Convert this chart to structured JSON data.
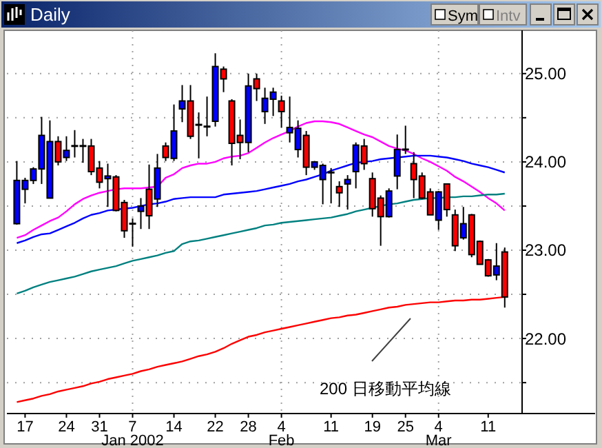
{
  "chart_data": {
    "type": "candlestick",
    "title": "Daily",
    "annotations": [
      "200 日移動平均線",
      "Sym",
      "Intv"
    ],
    "categories": [
      null,
      "17",
      null,
      null,
      null,
      null,
      "24",
      null,
      null,
      null,
      "31",
      null,
      null,
      null,
      "7\nJan 2002",
      null,
      null,
      null,
      null,
      "14",
      null,
      null,
      null,
      null,
      "22",
      null,
      null,
      null,
      "28",
      null,
      null,
      null,
      "4\nFeb",
      null,
      null,
      null,
      null,
      null,
      "11",
      null,
      null,
      null,
      null,
      "19",
      null,
      null,
      null,
      "25",
      null,
      null,
      null,
      "4\nMar",
      null,
      null,
      null,
      null,
      null,
      "11",
      null,
      null
    ],
    "ohlc": [
      [
        23.3,
        24.01,
        23.29,
        23.79
      ],
      [
        23.69,
        23.82,
        23.53,
        23.79
      ],
      [
        23.79,
        23.94,
        23.75,
        23.92
      ],
      [
        23.92,
        24.51,
        23.75,
        24.3
      ],
      [
        23.59,
        24.47,
        23.59,
        24.23
      ],
      [
        24.23,
        24.29,
        23.96,
        24.0
      ],
      [
        24.05,
        24.29,
        24.01,
        24.13
      ],
      [
        24.18,
        24.36,
        24.05,
        24.18
      ],
      [
        24.18,
        24.26,
        23.99,
        24.18
      ],
      [
        24.18,
        24.26,
        23.85,
        23.89
      ],
      [
        23.93,
        24.01,
        23.7,
        23.77
      ],
      [
        23.81,
        23.98,
        23.49,
        23.84
      ],
      [
        23.83,
        23.85,
        23.44,
        23.45
      ],
      [
        23.54,
        23.57,
        23.14,
        23.22
      ],
      [
        23.3,
        23.36,
        23.04,
        23.3
      ],
      [
        23.44,
        23.59,
        23.24,
        23.5
      ],
      [
        23.69,
        23.97,
        23.24,
        23.39
      ],
      [
        23.58,
        24.09,
        23.49,
        23.93
      ],
      [
        24.18,
        24.22,
        24.01,
        24.05
      ],
      [
        24.04,
        24.65,
        24.01,
        24.35
      ],
      [
        24.6,
        24.87,
        24.45,
        24.69
      ],
      [
        24.69,
        24.87,
        24.26,
        24.29
      ],
      [
        24.42,
        24.56,
        24.04,
        24.42
      ],
      [
        24.4,
        24.74,
        24.29,
        24.4
      ],
      [
        24.46,
        25.23,
        24.4,
        25.08
      ],
      [
        25.05,
        25.08,
        24.79,
        24.94
      ],
      [
        24.69,
        24.71,
        23.96,
        24.21
      ],
      [
        24.3,
        24.48,
        24.03,
        24.22
      ],
      [
        24.22,
        25.0,
        24.11,
        24.86
      ],
      [
        24.94,
        25.0,
        24.69,
        24.83
      ],
      [
        24.57,
        24.84,
        24.43,
        24.72
      ],
      [
        24.71,
        24.84,
        24.52,
        24.79
      ],
      [
        24.69,
        24.75,
        24.39,
        24.57
      ],
      [
        24.33,
        24.74,
        24.22,
        24.39
      ],
      [
        24.14,
        24.47,
        24.05,
        24.38
      ],
      [
        24.3,
        24.35,
        23.85,
        23.94
      ],
      [
        23.94,
        24.01,
        23.91,
        24.0
      ],
      [
        23.8,
        23.98,
        23.52,
        23.96
      ],
      [
        23.88,
        23.93,
        23.53,
        23.88
      ],
      [
        23.72,
        23.78,
        23.49,
        23.65
      ],
      [
        23.75,
        23.85,
        23.46,
        23.8
      ],
      [
        23.89,
        24.22,
        23.7,
        24.19
      ],
      [
        24.18,
        24.26,
        23.91,
        23.98
      ],
      [
        23.81,
        23.88,
        23.38,
        23.47
      ],
      [
        23.59,
        23.62,
        23.05,
        23.38
      ],
      [
        23.38,
        23.7,
        23.37,
        23.67
      ],
      [
        23.84,
        24.31,
        23.69,
        24.14
      ],
      [
        24.14,
        24.41,
        24.09,
        24.14
      ],
      [
        23.98,
        24.11,
        23.59,
        23.8
      ],
      [
        23.84,
        23.88,
        23.58,
        23.59
      ],
      [
        23.66,
        23.7,
        23.4,
        23.4
      ],
      [
        23.34,
        23.67,
        23.23,
        23.66
      ],
      [
        23.75,
        23.75,
        23.38,
        23.46
      ],
      [
        23.4,
        23.46,
        22.99,
        23.05
      ],
      [
        23.14,
        23.49,
        23.12,
        23.3
      ],
      [
        23.4,
        23.41,
        22.92,
        22.95
      ],
      [
        23.1,
        23.11,
        22.84,
        22.84
      ],
      [
        22.89,
        22.9,
        22.7,
        22.71
      ],
      [
        22.72,
        23.08,
        22.66,
        22.82
      ],
      [
        22.98,
        23.03,
        22.35,
        22.47
      ]
    ],
    "colors": [
      "#0000ff",
      "#0000ff",
      "#0000ff",
      "#0000ff",
      "#0000ff",
      "#ff0000",
      "#0000ff",
      "#000000",
      "#000000",
      "#ff0000",
      "#ff0000",
      "#0000ff",
      "#ff0000",
      "#ff0000",
      "#000000",
      "#0000ff",
      "#ff0000",
      "#0000ff",
      "#ff0000",
      "#0000ff",
      "#0000ff",
      "#ff0000",
      "#000000",
      "#000000",
      "#0000ff",
      "#ff0000",
      "#ff0000",
      "#ff0000",
      "#0000ff",
      "#ff0000",
      "#0000ff",
      "#0000ff",
      "#ff0000",
      "#0000ff",
      "#0000ff",
      "#ff0000",
      "#0000ff",
      "#0000ff",
      "#000000",
      "#ff0000",
      "#0000ff",
      "#0000ff",
      "#ff0000",
      "#ff0000",
      "#ff0000",
      "#0000ff",
      "#0000ff",
      "#000000",
      "#ff0000",
      "#ff0000",
      "#ff0000",
      "#0000ff",
      "#ff0000",
      "#ff0000",
      "#0000ff",
      "#ff0000",
      "#ff0000",
      "#ff0000",
      "#0000ff",
      "#ff0000"
    ],
    "series": [
      {
        "type": "line",
        "color": "#ff00ff",
        "values": [
          23.14,
          23.17,
          23.23,
          23.28,
          23.33,
          23.37,
          23.44,
          23.52,
          23.58,
          23.62,
          23.65,
          23.67,
          23.69,
          23.7,
          23.7,
          23.7,
          23.71,
          23.72,
          23.82,
          23.86,
          23.93,
          23.96,
          23.98,
          23.98,
          24.0,
          24.04,
          24.06,
          24.07,
          24.1,
          24.16,
          24.22,
          24.27,
          24.31,
          24.35,
          24.4,
          24.44,
          24.46,
          24.46,
          24.45,
          24.43,
          24.39,
          24.35,
          24.31,
          24.28,
          24.23,
          24.18,
          24.15,
          24.13,
          24.09,
          24.04,
          24.0,
          23.95,
          23.9,
          23.83,
          23.78,
          23.72,
          23.66,
          23.59,
          23.53,
          23.45
        ]
      },
      {
        "type": "line",
        "color": "#0000ff",
        "values": [
          23.08,
          23.11,
          23.15,
          23.18,
          23.19,
          23.23,
          23.27,
          23.31,
          23.36,
          23.4,
          23.42,
          23.45,
          23.46,
          23.47,
          23.48,
          23.5,
          23.52,
          23.53,
          23.55,
          23.58,
          23.59,
          23.6,
          23.6,
          23.6,
          23.6,
          23.63,
          23.64,
          23.65,
          23.66,
          23.67,
          23.69,
          23.71,
          23.73,
          23.75,
          23.78,
          23.8,
          23.83,
          23.86,
          23.9,
          23.93,
          23.96,
          23.99,
          24.0,
          24.01,
          24.03,
          24.04,
          24.05,
          24.06,
          24.07,
          24.07,
          24.07,
          24.06,
          24.05,
          24.03,
          24.01,
          23.98,
          23.96,
          23.94,
          23.91,
          23.88
        ]
      },
      {
        "type": "line",
        "color": "#008080",
        "values": [
          22.51,
          22.54,
          22.58,
          22.61,
          22.64,
          22.66,
          22.68,
          22.7,
          22.73,
          22.76,
          22.78,
          22.8,
          22.82,
          22.85,
          22.88,
          22.9,
          22.92,
          22.94,
          22.97,
          22.99,
          23.07,
          23.1,
          23.11,
          23.13,
          23.15,
          23.17,
          23.19,
          23.21,
          23.23,
          23.25,
          23.28,
          23.29,
          23.31,
          23.32,
          23.33,
          23.34,
          23.35,
          23.36,
          23.37,
          23.39,
          23.41,
          23.44,
          23.46,
          23.48,
          23.5,
          23.52,
          23.53,
          23.55,
          23.57,
          23.58,
          23.59,
          23.59,
          23.6,
          23.6,
          23.61,
          23.61,
          23.62,
          23.63,
          23.63,
          23.64
        ]
      },
      {
        "type": "line",
        "color": "#ff0000",
        "values": [
          21.28,
          21.3,
          21.32,
          21.35,
          21.37,
          21.4,
          21.42,
          21.44,
          21.46,
          21.49,
          21.51,
          21.54,
          21.56,
          21.58,
          21.6,
          21.63,
          21.65,
          21.68,
          21.7,
          21.72,
          21.74,
          21.77,
          21.8,
          21.82,
          21.85,
          21.89,
          21.94,
          21.98,
          22.02,
          22.04,
          22.07,
          22.09,
          22.11,
          22.13,
          22.15,
          22.17,
          22.19,
          22.21,
          22.23,
          22.24,
          22.26,
          22.27,
          22.29,
          22.31,
          22.33,
          22.35,
          22.36,
          22.38,
          22.39,
          22.4,
          22.41,
          22.41,
          22.42,
          22.43,
          22.43,
          22.44,
          22.44,
          22.45,
          22.46,
          22.47
        ]
      }
    ],
    "ylim": [
      21.15,
      25.49
    ],
    "yticks": [
      {
        "value": 21.5,
        "label": null
      },
      {
        "value": 22,
        "label": "22.00"
      },
      {
        "value": 22.5,
        "label": null
      },
      {
        "value": 23,
        "label": "23.00"
      },
      {
        "value": 23.5,
        "label": null
      },
      {
        "value": 24,
        "label": "24.00"
      },
      {
        "value": 24.5,
        "label": null
      },
      {
        "value": 25,
        "label": "25.00"
      }
    ],
    "grid": true
  }
}
